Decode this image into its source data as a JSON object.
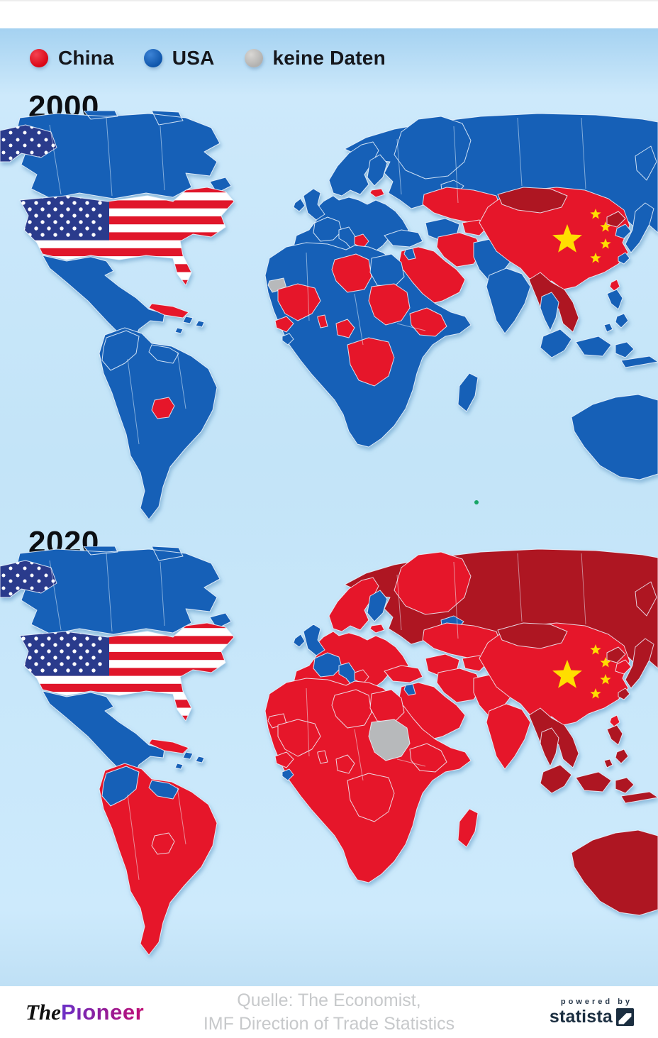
{
  "legend": {
    "items": [
      {
        "label": "China",
        "color_key": "china"
      },
      {
        "label": "USA",
        "color_key": "usa"
      },
      {
        "label": "keine Daten",
        "color_key": "no_data"
      }
    ]
  },
  "sections": [
    {
      "year": "2000"
    },
    {
      "year": "2020"
    }
  ],
  "map_colors": {
    "china": "#e6192b",
    "china_dark": "#ae1222",
    "usa": "#1560b7",
    "no_data": "#b7b9bb",
    "flag_yellow": "#ffde00",
    "border": "#eef7ff",
    "flag_red": "#e0162b",
    "flag_navy": "#2b3a8c",
    "artifact_green": "#17a565"
  },
  "regions": {
    "russia": {
      "label": "Russia",
      "y2000": "usa",
      "y2020": "china_dark"
    },
    "canada": {
      "label": "Canada",
      "y2000": "usa",
      "y2020": "usa"
    },
    "greenland": {
      "label": "Greenland",
      "y2000": "usa",
      "y2020": "china"
    },
    "iceland": {
      "label": "Iceland",
      "y2000": "usa",
      "y2020": "usa"
    },
    "europe": {
      "label": "Europe",
      "y2000": "usa",
      "y2020": "china"
    },
    "uk_ireland": {
      "label": "UK & Ireland",
      "y2000": "usa",
      "y2020": "usa"
    },
    "france_benelux": {
      "label": "France & Benelux",
      "y2000": "usa",
      "y2020": "usa"
    },
    "italy_switzerland": {
      "label": "Italy & Switzerland",
      "y2000": "usa",
      "y2020": "usa"
    },
    "finland": {
      "label": "Finland",
      "y2000": "usa",
      "y2020": "usa"
    },
    "estonia": {
      "label": "Estonia",
      "y2000": "china",
      "y2020": "china"
    },
    "balkans": {
      "label": "Bosnia & Croatia",
      "y2000": "china",
      "y2020": "china"
    },
    "kazakhstan": {
      "label": "Kazakhstan",
      "y2000": "china",
      "y2020": "china"
    },
    "central_asia": {
      "label": "Uzbekistan & Turkmenistan",
      "y2000": "usa",
      "y2020": "china"
    },
    "kyrgyz_tajik": {
      "label": "Kyrgyzstan & Tajikistan",
      "y2000": "china",
      "y2020": "china"
    },
    "turkey": {
      "label": "Turkey",
      "y2000": "usa",
      "y2020": "china"
    },
    "iran": {
      "label": "Iran",
      "y2000": "china",
      "y2020": "china"
    },
    "middle_east": {
      "label": "Arabian Peninsula & Iraq",
      "y2000": "china",
      "y2020": "china"
    },
    "levant": {
      "label": "Israel & Jordan",
      "y2000": "usa",
      "y2020": "usa"
    },
    "afghan_pak": {
      "label": "Afghanistan & Pakistan",
      "y2000": "usa",
      "y2020": "china"
    },
    "india": {
      "label": "India",
      "y2000": "usa",
      "y2020": "china"
    },
    "china": {
      "label": "China",
      "y2000": "china",
      "y2020": "china"
    },
    "mongolia": {
      "label": "Mongolia",
      "y2000": "china_dark",
      "y2020": "china_dark"
    },
    "korea_north": {
      "label": "North Korea",
      "y2000": "china_dark",
      "y2020": "china_dark"
    },
    "korea_south": {
      "label": "South Korea",
      "y2000": "usa",
      "y2020": "china"
    },
    "japan": {
      "label": "Japan",
      "y2000": "usa",
      "y2020": "china_dark"
    },
    "taiwan": {
      "label": "Taiwan",
      "y2000": "china",
      "y2020": "china"
    },
    "indochina": {
      "label": "Myanmar, Laos, Vietnam & Cambodia",
      "y2000": "china_dark",
      "y2020": "china_dark"
    },
    "thailand": {
      "label": "Thailand",
      "y2000": "usa",
      "y2020": "china_dark"
    },
    "philippines": {
      "label": "Philippines",
      "y2000": "usa",
      "y2020": "china_dark"
    },
    "indonesia": {
      "label": "Indonesia & Malaysia",
      "y2000": "usa",
      "y2020": "china_dark"
    },
    "australia": {
      "label": "Australia",
      "y2000": "usa",
      "y2020": "china_dark"
    },
    "africa": {
      "label": "Africa",
      "y2000": "usa",
      "y2020": "china"
    },
    "west_sahara": {
      "label": "Western Sahara",
      "y2000": "no_data",
      "y2020": "china"
    },
    "mali_group": {
      "label": "Mali & Sahel",
      "y2000": "china",
      "y2020": "china"
    },
    "guinea": {
      "label": "Guinea",
      "y2000": "china",
      "y2020": "china"
    },
    "liberia": {
      "label": "Liberia & Sierra Leone",
      "y2000": "usa",
      "y2020": "usa"
    },
    "benin": {
      "label": "Benin & Togo",
      "y2000": "china",
      "y2020": "china"
    },
    "libya": {
      "label": "Libya",
      "y2000": "china",
      "y2020": "china"
    },
    "egypt": {
      "label": "Egypt",
      "y2000": "usa",
      "y2020": "china"
    },
    "sudan": {
      "label": "Sudan",
      "y2000": "china",
      "y2020": "no_data"
    },
    "ethiopia": {
      "label": "Ethiopia",
      "y2000": "china",
      "y2020": "china"
    },
    "cameroon": {
      "label": "Cameroon",
      "y2000": "china",
      "y2020": "china"
    },
    "drc": {
      "label": "DR Congo",
      "y2000": "china",
      "y2020": "china"
    },
    "madagascar": {
      "label": "Madagascar",
      "y2000": "usa",
      "y2020": "china"
    },
    "mexico": {
      "label": "Mexico & Central America",
      "y2000": "usa",
      "y2020": "usa"
    },
    "usa": {
      "label": "USA",
      "y2000": "usa",
      "y2020": "usa"
    },
    "alaska": {
      "label": "Alaska (USA)",
      "y2000": "usa",
      "y2020": "usa"
    },
    "cuba": {
      "label": "Cuba",
      "y2000": "china",
      "y2020": "china"
    },
    "caribbean": {
      "label": "Caribbean",
      "y2000": "usa",
      "y2020": "usa"
    },
    "south_america": {
      "label": "South America",
      "y2000": "usa",
      "y2020": "china"
    },
    "colombia_ecuador": {
      "label": "Colombia & Ecuador",
      "y2000": "usa",
      "y2020": "usa"
    },
    "guyanas": {
      "label": "Guyanas",
      "y2000": "usa",
      "y2020": "usa"
    },
    "paraguay": {
      "label": "Paraguay",
      "y2000": "china",
      "y2020": "china"
    }
  },
  "footer": {
    "source_line1": "Quelle: The Economist,",
    "source_line2": "IMF Direction of Trade Statistics",
    "brand_the": "The",
    "brand_pioneer": "Pıoneer",
    "powered_by": "powered by",
    "statista": "statista"
  }
}
